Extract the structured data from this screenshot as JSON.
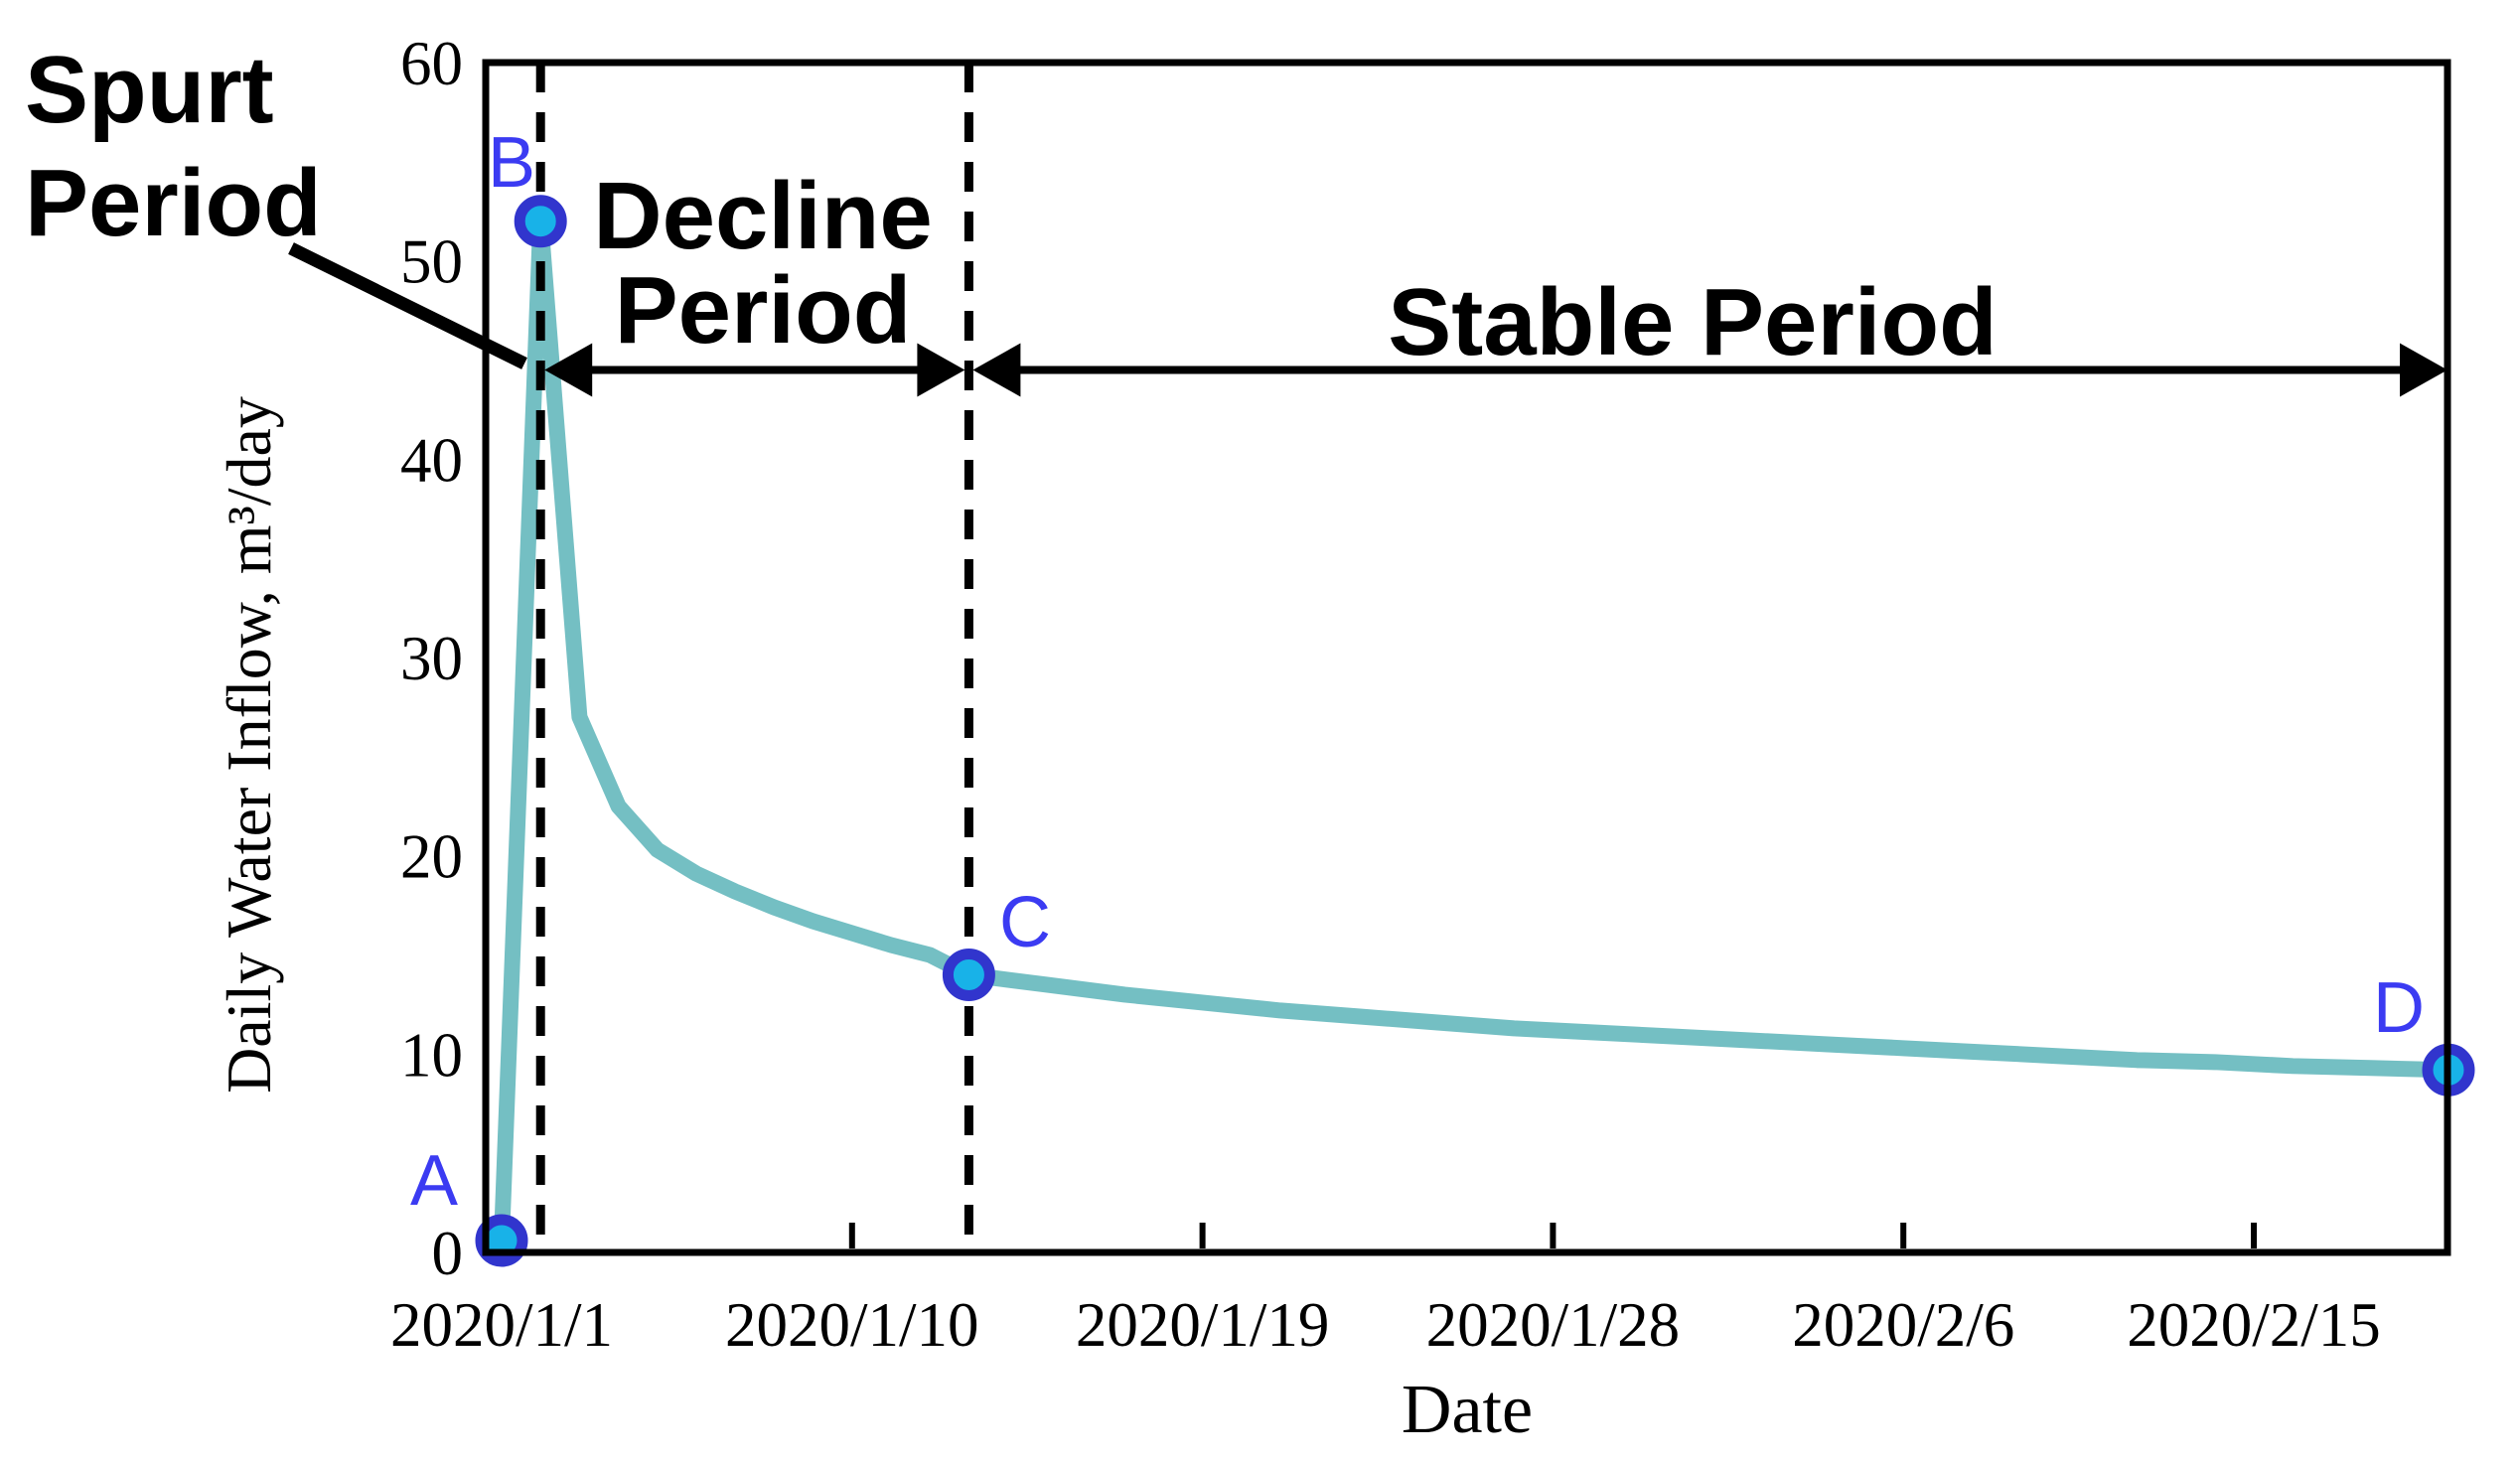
{
  "chart_data": {
    "type": "line",
    "title": "",
    "xlabel": "Date",
    "ylabel": "Daily Water Inflow, m³/day",
    "ylim": [
      0,
      60
    ],
    "x_range_dates": [
      "2019/12/31",
      "2020/2/20"
    ],
    "grid": false,
    "legend": false,
    "y_ticks": [
      0,
      10,
      20,
      30,
      40,
      50,
      60
    ],
    "x_ticks": [
      {
        "label": "2020/1/1",
        "day": 0
      },
      {
        "label": "2020/1/10",
        "day": 9
      },
      {
        "label": "2020/1/19",
        "day": 18
      },
      {
        "label": "2020/1/28",
        "day": 27
      },
      {
        "label": "2020/2/6",
        "day": 36
      },
      {
        "label": "2020/2/15",
        "day": 45
      }
    ],
    "series": [
      {
        "name": "daily-water-inflow",
        "color": "#74bfc3",
        "x_days": [
          0,
          1,
          2,
          3,
          4,
          5,
          6,
          7,
          8,
          9,
          10,
          11,
          12,
          14,
          16,
          18,
          20,
          22,
          24,
          26,
          28,
          30,
          32,
          34,
          36,
          38,
          40,
          42,
          44,
          46,
          48,
          50
        ],
        "values": [
          0.6,
          52,
          27,
          22.5,
          20.3,
          19.1,
          18.2,
          17.4,
          16.7,
          16.1,
          15.5,
          15.0,
          14.0,
          13.5,
          13.0,
          12.6,
          12.2,
          11.9,
          11.6,
          11.3,
          11.1,
          10.9,
          10.7,
          10.5,
          10.3,
          10.1,
          9.9,
          9.7,
          9.6,
          9.4,
          9.3,
          9.2
        ]
      }
    ],
    "key_points": [
      {
        "label": "A",
        "date": "2020/1/1",
        "day": 0,
        "value": 0.6
      },
      {
        "label": "B",
        "date": "2020/1/2",
        "day": 1,
        "value": 52
      },
      {
        "label": "C",
        "date": "2020/1/13",
        "day": 12,
        "value": 14
      },
      {
        "label": "D",
        "date": "2020/2/20",
        "day": 50,
        "value": 9.2
      }
    ],
    "period_divider_days": [
      1,
      12
    ],
    "periods": [
      {
        "label": "Spurt Period",
        "from_day": 0,
        "to_day": 1
      },
      {
        "label": "Decline Period",
        "from_day": 1,
        "to_day": 12
      },
      {
        "label": "Stable Period",
        "from_day": 12,
        "to_day": 50
      }
    ],
    "arrow_level_value": 44.5,
    "colors": {
      "line": "#74bfc3",
      "marker_fill": "#18b2e8",
      "marker_ring": "#3135cd",
      "point_label": "#3b3bf2",
      "annotation": "#000000"
    }
  },
  "labels": {
    "spurt_line1": "Spurt",
    "spurt_line2": "Period",
    "decline_line1": "Decline",
    "decline_line2": "Period"
  }
}
